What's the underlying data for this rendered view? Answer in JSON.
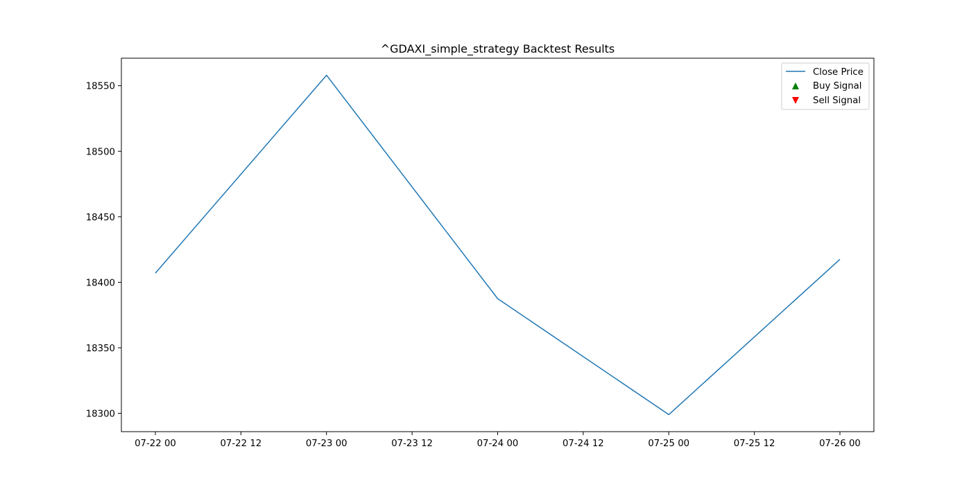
{
  "chart_data": {
    "type": "line",
    "title": "^GDAXI_simple_strategy Backtest Results",
    "xlabel": "",
    "ylabel": "",
    "x": [
      "07-22 00",
      "07-23 00",
      "07-24 00",
      "07-25 00",
      "07-26 00"
    ],
    "series": [
      {
        "name": "Close Price",
        "color": "#1f77b4",
        "values": [
          18407,
          18558,
          18387.5,
          18299,
          18417.5
        ]
      }
    ],
    "x_tick_labels": [
      "07-22 00",
      "07-22 12",
      "07-23 00",
      "07-23 12",
      "07-24 00",
      "07-24 12",
      "07-25 00",
      "07-25 12",
      "07-26 00"
    ],
    "y_ticks": [
      18300,
      18350,
      18400,
      18450,
      18500,
      18550
    ],
    "ylim": [
      18286,
      18571
    ],
    "legend": {
      "placement": "top-right",
      "entries": [
        {
          "label": "Close Price",
          "marker": "line",
          "color": "#1f77b4"
        },
        {
          "label": "Buy Signal",
          "marker": "triangle-up",
          "color": "#008000"
        },
        {
          "label": "Sell Signal",
          "marker": "triangle-down",
          "color": "#ff0000"
        }
      ]
    },
    "grid": false
  }
}
